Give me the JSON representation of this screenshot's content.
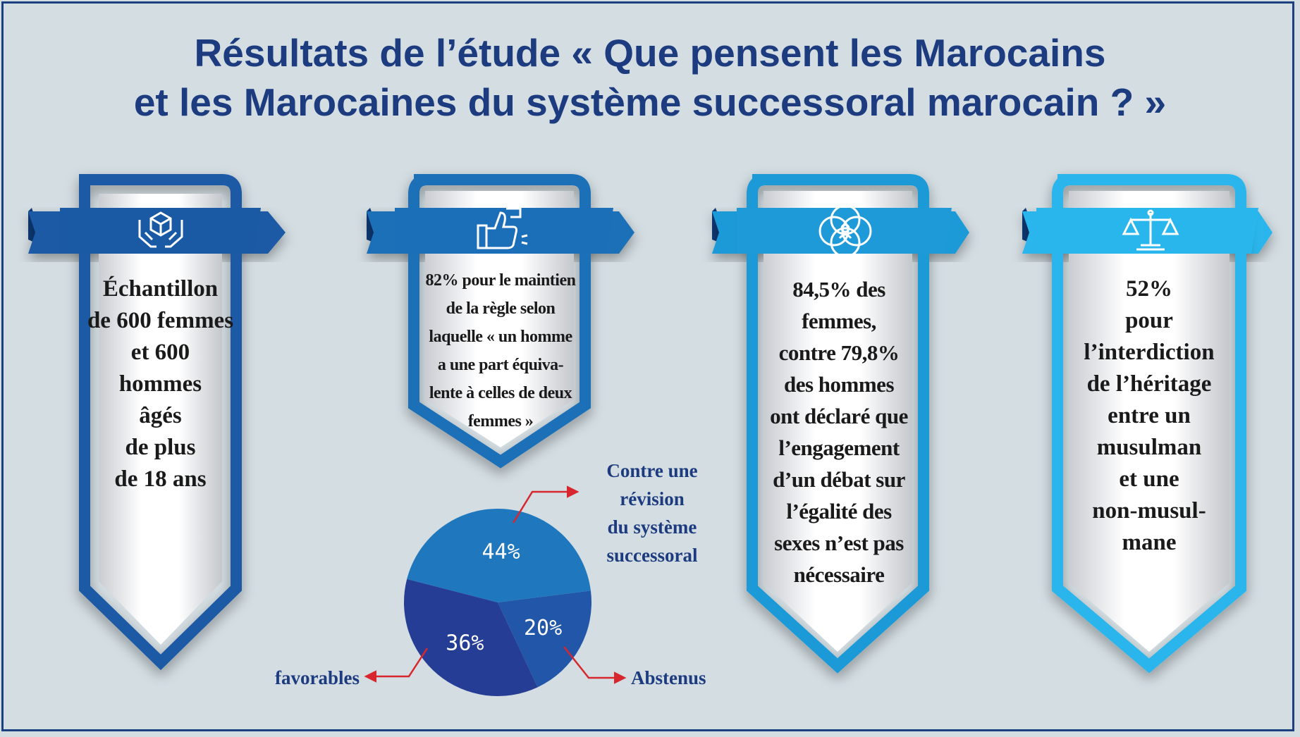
{
  "title": {
    "line1": "Résultats de l’étude « Que pensent les Marocains",
    "line2": "et les Marocaines du système successoral marocain ? »"
  },
  "cards": [
    {
      "icon": "hands-box-icon",
      "color": "#1a5aa5",
      "lines": [
        "Échantillon",
        "de 600 femmes",
        "et 600",
        "hommes",
        "âgés",
        "de plus",
        "de 18 ans"
      ]
    },
    {
      "icon": "thumbs-up-icon",
      "color": "#1b6fb8",
      "lines": [
        "82% pour le maintien",
        "de la règle selon",
        "laquelle « un homme",
        "a une part équiva-",
        "lente à celles de deux",
        "femmes »"
      ]
    },
    {
      "icon": "overlapping-circles-icon",
      "color": "#1e9ad8",
      "lines": [
        "84,5% des",
        "femmes,",
        "contre 79,8%",
        "des hommes",
        "ont déclaré que",
        "l’engagement",
        "d’un débat sur",
        "l’égalité des",
        "sexes n’est pas",
        "nécessaire"
      ]
    },
    {
      "icon": "scales-icon",
      "color": "#29b6ec",
      "lines": [
        "52%",
        "pour",
        "l’interdiction",
        "de l’héritage",
        "entre un",
        "musulman",
        "et une",
        "non-musul-",
        "mane"
      ]
    }
  ],
  "chart_data": {
    "type": "pie",
    "slices": [
      {
        "label": "44%",
        "value": 44,
        "color": "#1f78bd",
        "category": [
          "Contre une",
          "révision",
          "du système",
          "successoral"
        ]
      },
      {
        "label": "20%",
        "value": 20,
        "color": "#2156a8",
        "category": [
          "Abstenus"
        ]
      },
      {
        "label": "36%",
        "value": 36,
        "color": "#253d95",
        "category": [
          "favorables"
        ]
      }
    ],
    "arrow_color": "#d7262e"
  }
}
